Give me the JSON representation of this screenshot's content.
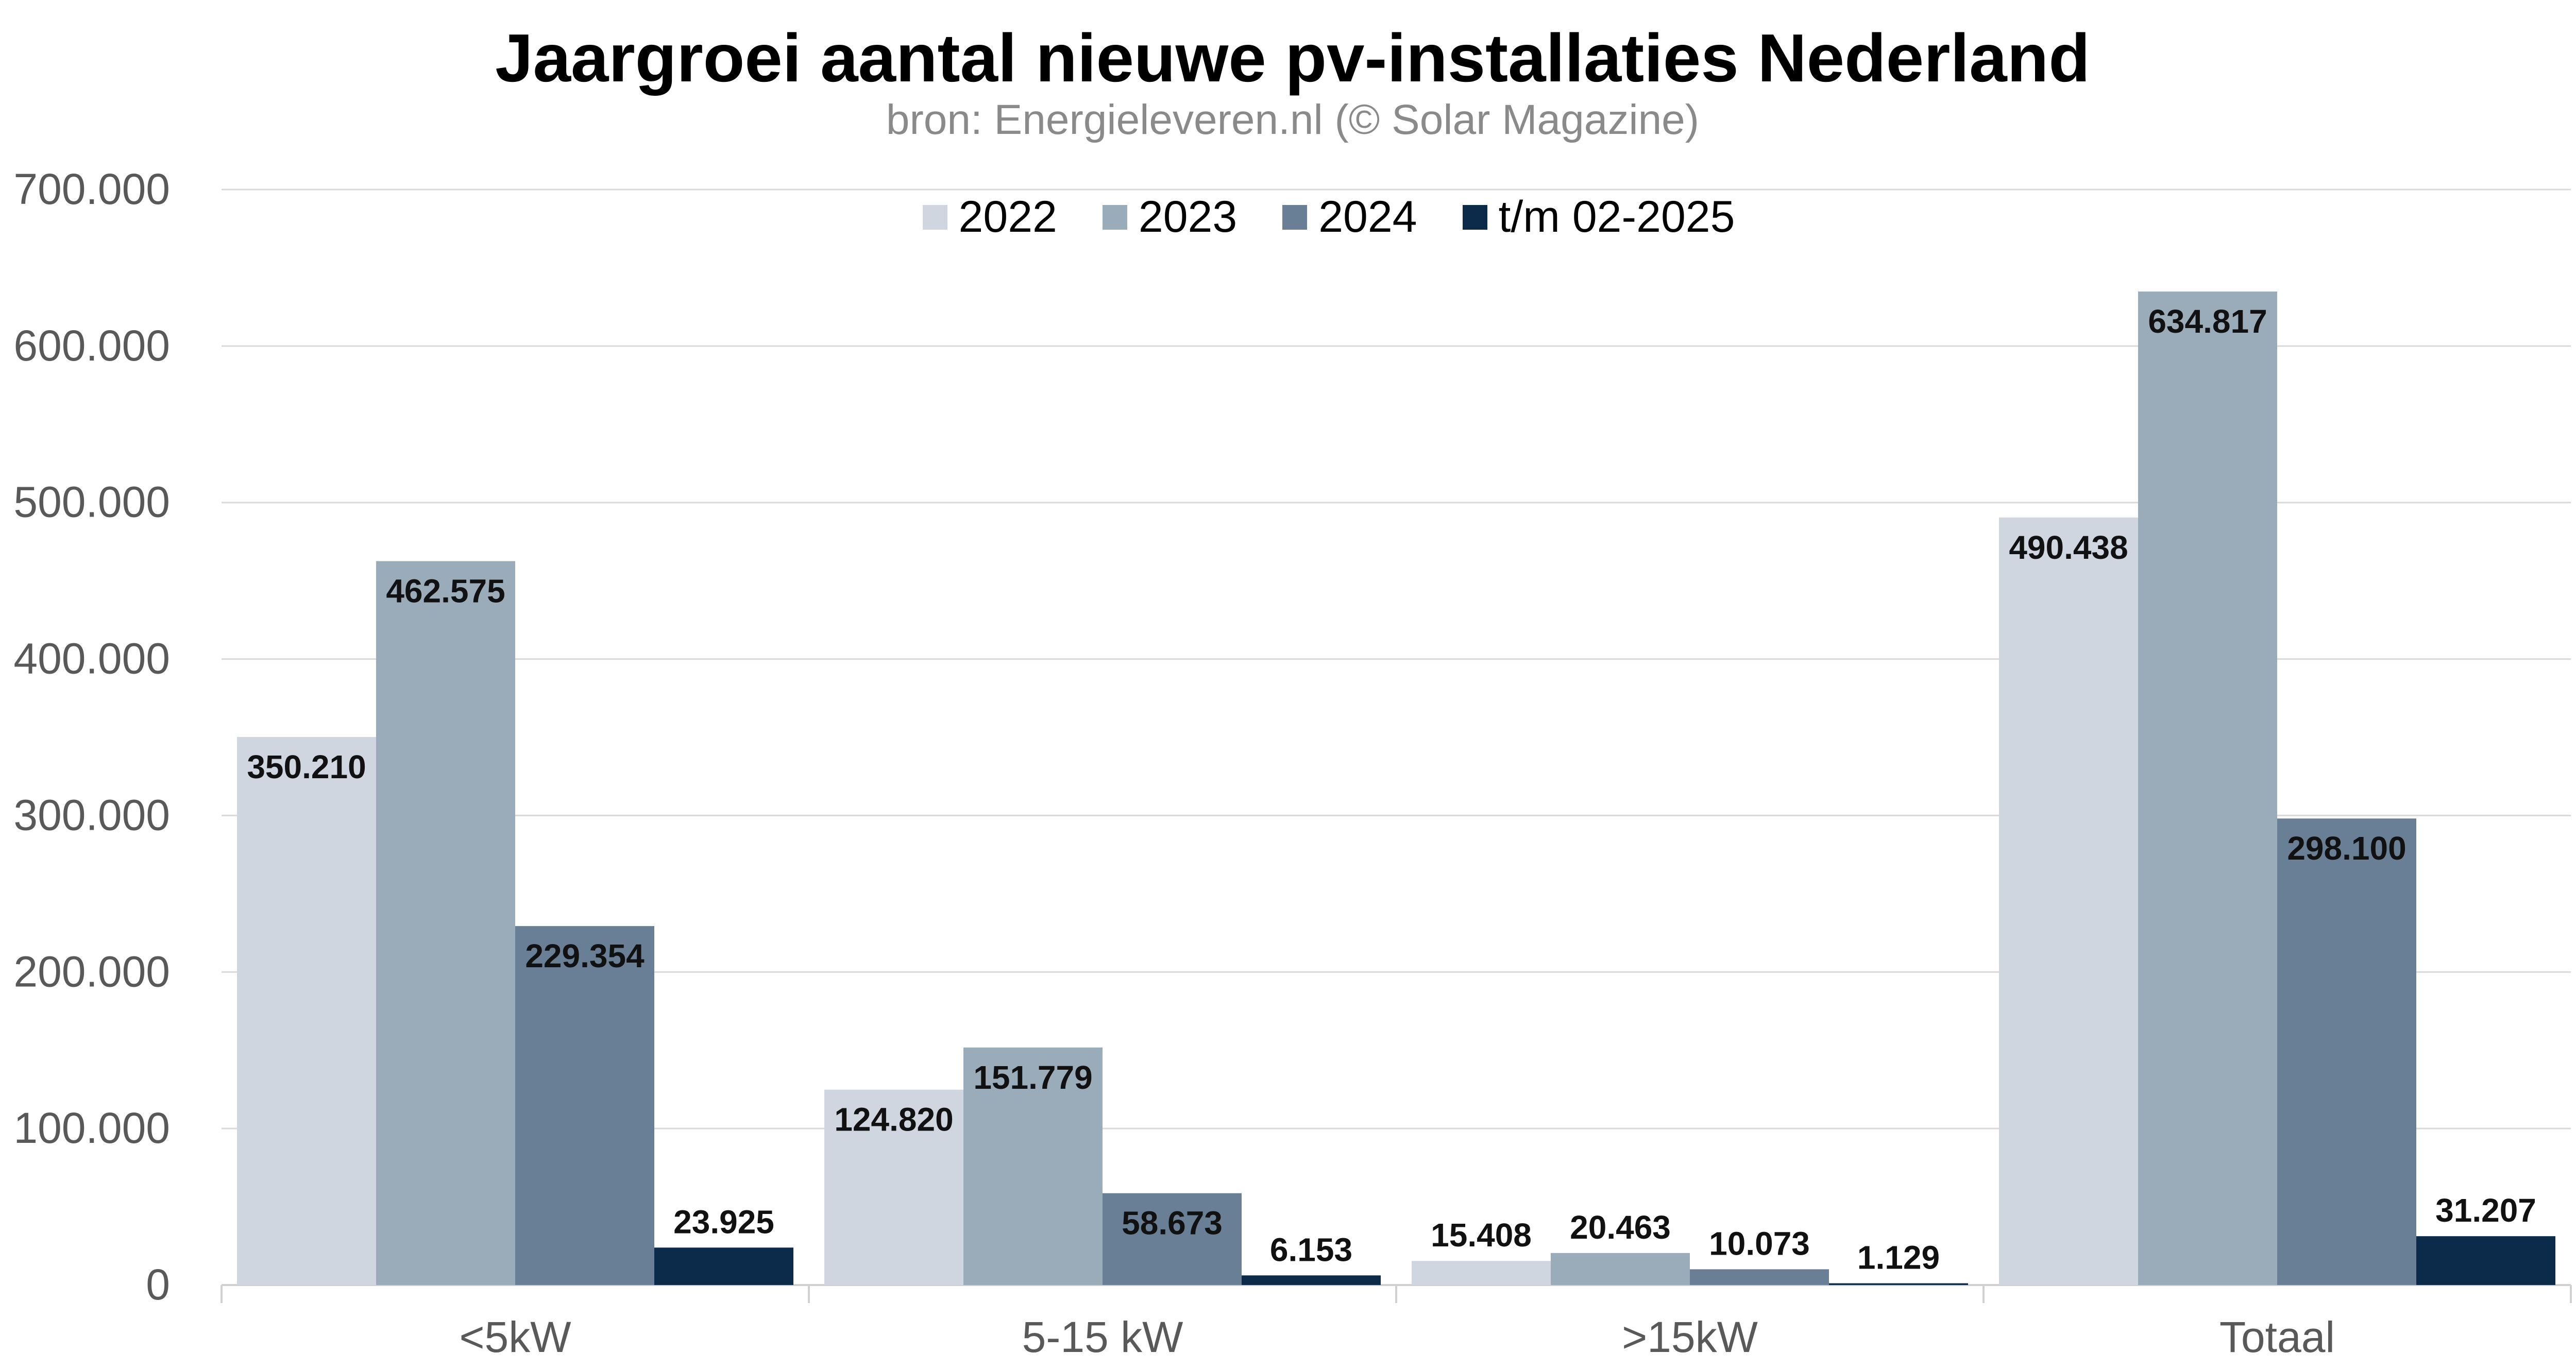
{
  "chart_data": {
    "type": "bar",
    "title": "Jaargroei aantal nieuwe pv-installaties Nederland",
    "subtitle": "bron: Energieleveren.nl (© Solar Magazine)",
    "categories": [
      "<5kW",
      "5-15 kW",
      ">15kW",
      "Totaal"
    ],
    "series": [
      {
        "name": "2022",
        "color": "#cfd6df",
        "values": [
          350210,
          124820,
          15408,
          490438
        ],
        "labels": [
          "350.210",
          "124.820",
          "15.408",
          "490.438"
        ]
      },
      {
        "name": "2023",
        "color": "#9aabba",
        "values": [
          462575,
          151779,
          20463,
          634817
        ],
        "labels": [
          "462.575",
          "151.779",
          "20.463",
          "634.817"
        ]
      },
      {
        "name": "2024",
        "color": "#687f95",
        "values": [
          229354,
          58673,
          10073,
          298100
        ],
        "labels": [
          "229.354",
          "58.673",
          "10.073",
          "298.100"
        ]
      },
      {
        "name": "t/m 02-2025",
        "color": "#0c2b4b",
        "values": [
          23925,
          6153,
          1129,
          31207
        ],
        "labels": [
          "23.925",
          "6.153",
          "1.129",
          "31.207"
        ]
      }
    ],
    "ylim": [
      0,
      700000
    ],
    "yticks": [
      0,
      100000,
      200000,
      300000,
      400000,
      500000,
      600000,
      700000
    ],
    "ytick_labels": [
      "0",
      "100.000",
      "200.000",
      "300.000",
      "400.000",
      "500.000",
      "600.000",
      "700.000"
    ],
    "grid": true,
    "legend_position": "top-center",
    "xlabel": "",
    "ylabel": ""
  }
}
